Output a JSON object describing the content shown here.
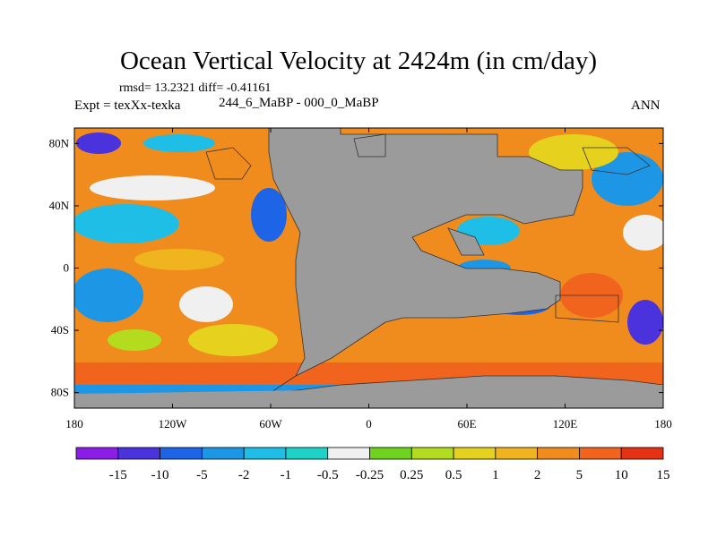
{
  "title": "Ocean Vertical Velocity at 2424m (in cm/day)",
  "stats": "rmsd= 13.2321 diff= -0.41161",
  "expt": "Expt = texXx-texka",
  "subtitle": "244_6_MaBP - 000_0_MaBP",
  "season": "ANN",
  "colors": {
    "land": "#9b9b9b",
    "coast": "#333333"
  },
  "map": {
    "lon_range": [
      -180,
      180
    ],
    "lat_range": [
      -90,
      90
    ],
    "lat_ticks": [
      {
        "value": 80,
        "label": "80N"
      },
      {
        "value": 40,
        "label": "40N"
      },
      {
        "value": 0,
        "label": "0"
      },
      {
        "value": -40,
        "label": "40S"
      },
      {
        "value": -80,
        "label": "80S"
      }
    ],
    "lon_ticks": [
      {
        "value": -180,
        "label": "180"
      },
      {
        "value": -120,
        "label": "120W"
      },
      {
        "value": -60,
        "label": "60W"
      },
      {
        "value": 0,
        "label": "0"
      },
      {
        "value": 60,
        "label": "60E"
      },
      {
        "value": 120,
        "label": "120E"
      },
      {
        "value": 180,
        "label": "180"
      }
    ]
  },
  "colorbar": {
    "colors": [
      "#8a1ee6",
      "#4a32dc",
      "#1e64e6",
      "#1e96e6",
      "#1ebee6",
      "#1ed2c8",
      "#f0f0f0",
      "#6ed21e",
      "#b4dc1e",
      "#e6d21e",
      "#f0b41e",
      "#f08c1e",
      "#f0641e",
      "#e63214"
    ],
    "labels": [
      "-15",
      "-10",
      "-5",
      "-2",
      "-1",
      "-0.5",
      "-0.25",
      "0.25",
      "0.5",
      "1",
      "2",
      "5",
      "10",
      "15"
    ]
  }
}
